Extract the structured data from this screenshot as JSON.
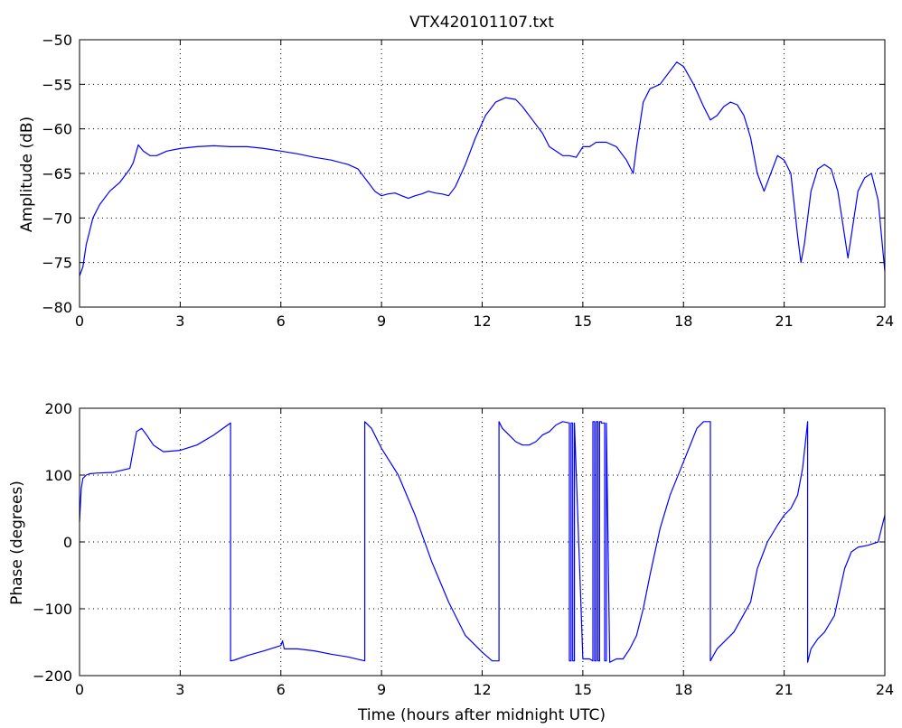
{
  "chart_data": [
    {
      "type": "line",
      "title": "VTX420101107.txt",
      "xlabel": "",
      "ylabel": "Amplitude (dB)",
      "xlim": [
        0,
        24
      ],
      "ylim": [
        -80,
        -50
      ],
      "xticks": [
        "0",
        "3",
        "6",
        "9",
        "12",
        "15",
        "18",
        "21",
        "24"
      ],
      "yticks": [
        "-50",
        "-55",
        "-60",
        "-65",
        "-70",
        "-75",
        "-80"
      ],
      "grid": true,
      "color": "#0000ff",
      "x": [
        0,
        0.1,
        0.2,
        0.4,
        0.6,
        0.9,
        1.2,
        1.5,
        1.6,
        1.75,
        1.9,
        2.1,
        2.3,
        2.6,
        3.0,
        3.5,
        4.0,
        4.5,
        5.0,
        5.5,
        6.0,
        6.5,
        7.0,
        7.5,
        8.0,
        8.3,
        8.6,
        8.8,
        9.0,
        9.2,
        9.4,
        9.6,
        9.8,
        10.0,
        10.2,
        10.4,
        10.6,
        10.8,
        11.0,
        11.2,
        11.5,
        11.8,
        12.1,
        12.4,
        12.7,
        13.0,
        13.2,
        13.5,
        13.8,
        14.0,
        14.2,
        14.4,
        14.6,
        14.8,
        15.0,
        15.2,
        15.4,
        15.7,
        16.0,
        16.3,
        16.5,
        16.6,
        16.8,
        17.0,
        17.3,
        17.6,
        17.8,
        18.0,
        18.3,
        18.6,
        18.8,
        19.0,
        19.2,
        19.4,
        19.6,
        19.8,
        20.0,
        20.2,
        20.4,
        20.6,
        20.8,
        21.0,
        21.2,
        21.4,
        21.5,
        21.6,
        21.8,
        22.0,
        22.2,
        22.4,
        22.6,
        22.8,
        22.9,
        23.0,
        23.2,
        23.4,
        23.6,
        23.8,
        24.0
      ],
      "y": [
        -76.5,
        -75.5,
        -73.0,
        -70.0,
        -68.5,
        -67.0,
        -66.0,
        -64.5,
        -63.8,
        -61.8,
        -62.5,
        -63.0,
        -63.0,
        -62.5,
        -62.2,
        -62.0,
        -61.9,
        -62.0,
        -62.0,
        -62.2,
        -62.5,
        -62.8,
        -63.2,
        -63.5,
        -64.0,
        -64.5,
        -66.0,
        -67.0,
        -67.5,
        -67.3,
        -67.2,
        -67.5,
        -67.8,
        -67.5,
        -67.3,
        -67.0,
        -67.2,
        -67.3,
        -67.5,
        -66.5,
        -64.0,
        -61.0,
        -58.5,
        -57.0,
        -56.5,
        -56.7,
        -57.5,
        -59.0,
        -60.5,
        -62.0,
        -62.5,
        -63.0,
        -63.0,
        -63.2,
        -62.0,
        -62.0,
        -61.5,
        -61.5,
        -62.0,
        -63.5,
        -65.0,
        -62.0,
        -57.0,
        -55.5,
        -55.0,
        -53.5,
        -52.5,
        -53.0,
        -55.0,
        -57.5,
        -59.0,
        -58.5,
        -57.5,
        -57.0,
        -57.3,
        -58.5,
        -61.0,
        -65.0,
        -67.0,
        -65.0,
        -63.0,
        -63.5,
        -65.0,
        -72.0,
        -75.0,
        -73.0,
        -67.0,
        -64.5,
        -64.0,
        -64.5,
        -67.0,
        -72.0,
        -74.5,
        -72.0,
        -67.0,
        -65.5,
        -65.0,
        -68.0,
        -76.0
      ]
    },
    {
      "type": "line",
      "title": "",
      "xlabel": "Time (hours after midnight UTC)",
      "ylabel": "Phase (degrees)",
      "xlim": [
        0,
        24
      ],
      "ylim": [
        -200,
        200
      ],
      "xticks": [
        "0",
        "3",
        "6",
        "9",
        "12",
        "15",
        "18",
        "21",
        "24"
      ],
      "yticks": [
        "200",
        "100",
        "0",
        "-100",
        "-200"
      ],
      "grid": true,
      "color": "#0000ff",
      "x": [
        0,
        0.05,
        0.1,
        0.2,
        0.3,
        0.5,
        1.0,
        1.5,
        1.7,
        1.85,
        2.0,
        2.2,
        2.5,
        3.0,
        3.5,
        4.0,
        4.5,
        4.5,
        4.6,
        5.0,
        5.5,
        6.0,
        6.05,
        6.1,
        6.5,
        7.0,
        7.5,
        8.0,
        8.5,
        8.5,
        8.7,
        9.0,
        9.5,
        10.0,
        10.5,
        11.0,
        11.5,
        12.0,
        12.3,
        12.5,
        12.5,
        12.6,
        12.8,
        13.0,
        13.2,
        13.4,
        13.6,
        13.8,
        14.0,
        14.2,
        14.4,
        14.6,
        14.6,
        14.65,
        14.65,
        14.7,
        14.7,
        14.75,
        14.75,
        15.0,
        15.2,
        15.3,
        15.3,
        15.35,
        15.35,
        15.4,
        15.4,
        15.45,
        15.45,
        15.5,
        15.5,
        15.55,
        15.55,
        15.65,
        15.65,
        15.7,
        15.7,
        15.8,
        16.0,
        16.2,
        16.4,
        16.6,
        16.8,
        17.0,
        17.3,
        17.6,
        18.0,
        18.4,
        18.6,
        18.8,
        18.8,
        19.0,
        19.5,
        20.0,
        20.2,
        20.5,
        20.8,
        21.0,
        21.2,
        21.4,
        21.55,
        21.7,
        21.7,
        21.8,
        22.0,
        22.2,
        22.5,
        22.8,
        23.0,
        23.2,
        23.5,
        23.8,
        24.0
      ],
      "y": [
        30,
        80,
        95,
        100,
        102,
        103,
        104,
        110,
        165,
        170,
        160,
        145,
        135,
        137,
        145,
        160,
        178,
        -178,
        -177,
        -170,
        -163,
        -155,
        -148,
        -160,
        -160,
        -163,
        -168,
        -172,
        -178,
        180,
        170,
        140,
        100,
        40,
        -30,
        -90,
        -140,
        -165,
        -178,
        -178,
        180,
        170,
        160,
        150,
        145,
        145,
        150,
        160,
        165,
        175,
        180,
        178,
        -178,
        -178,
        178,
        178,
        -178,
        -178,
        178,
        -175,
        -175,
        -178,
        180,
        180,
        -178,
        -178,
        180,
        180,
        -178,
        -178,
        180,
        180,
        178,
        178,
        -178,
        -178,
        178,
        -180,
        -175,
        -175,
        -160,
        -140,
        -100,
        -50,
        20,
        70,
        120,
        170,
        180,
        180,
        -178,
        -160,
        -135,
        -90,
        -40,
        0,
        25,
        40,
        50,
        70,
        110,
        180,
        -180,
        -160,
        -145,
        -135,
        -110,
        -40,
        -15,
        -8,
        -5,
        0,
        40
      ]
    }
  ]
}
